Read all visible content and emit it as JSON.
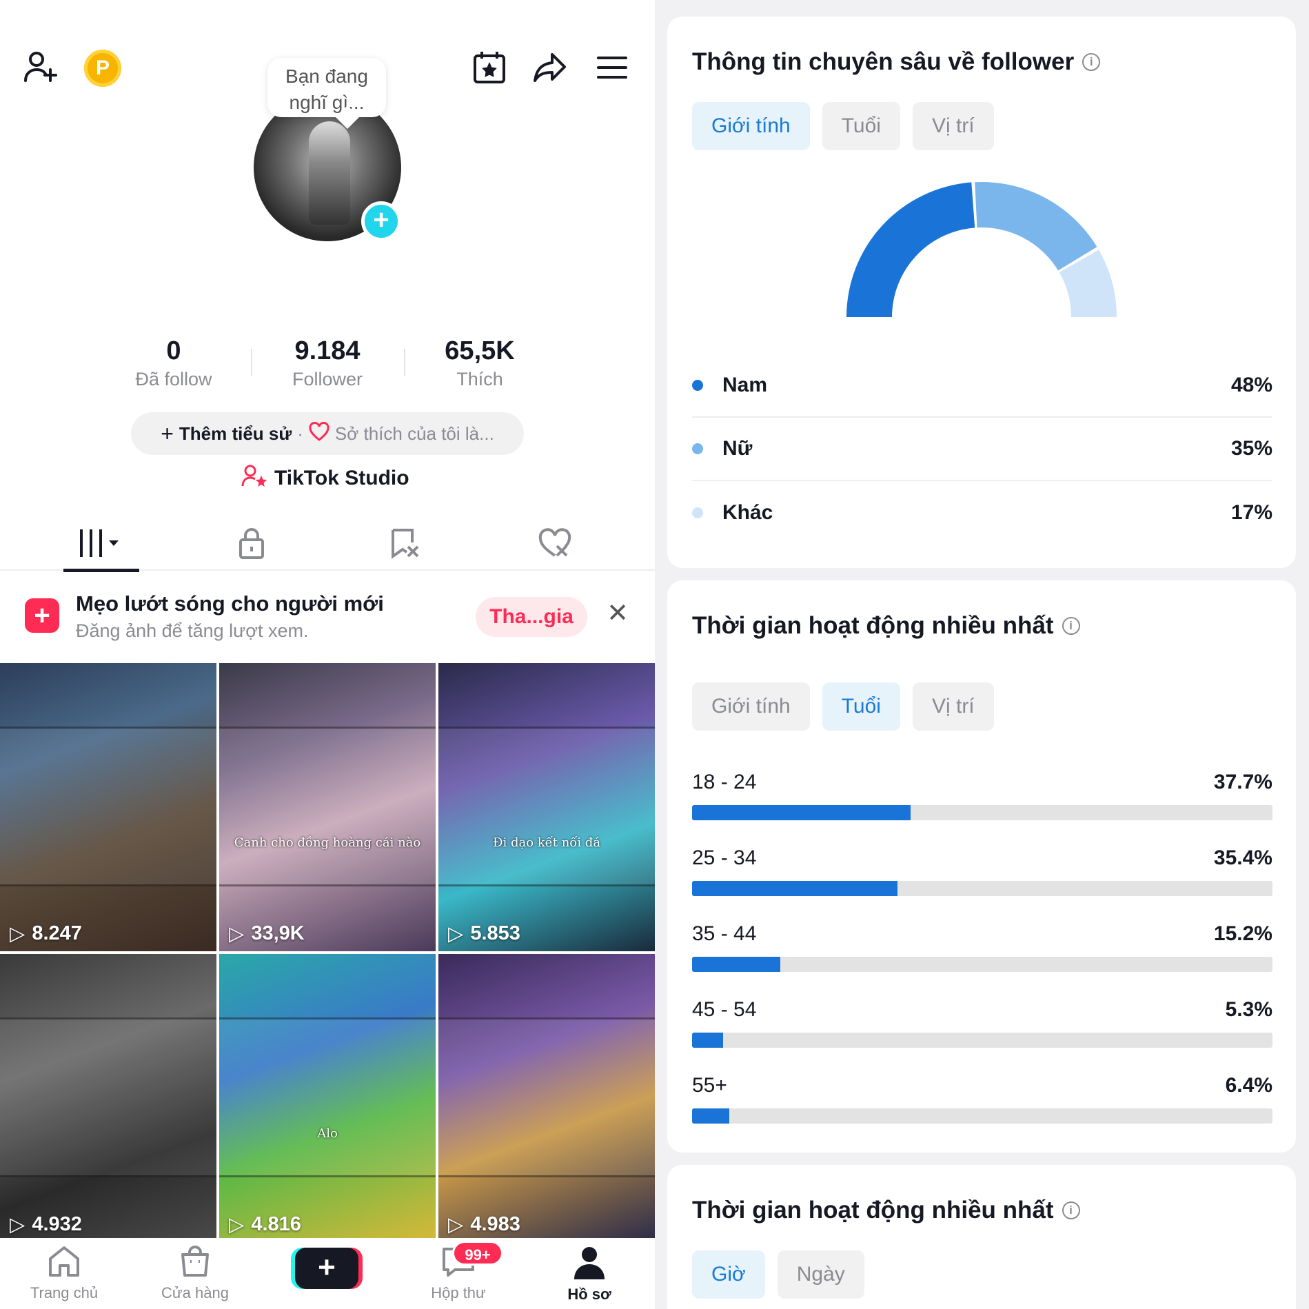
{
  "profile": {
    "bubble_text": "Bạn đang nghĩ gì...",
    "coin_letter": "P",
    "stats": [
      {
        "value": "0",
        "label": "Đã follow"
      },
      {
        "value": "9.184",
        "label": "Follower"
      },
      {
        "value": "65,5K",
        "label": "Thích"
      }
    ],
    "bio_add": "Thêm tiểu sử",
    "bio_separator": "·",
    "bio_hint": "Sở thích của tôi là...",
    "studio_label": "TikTok Studio"
  },
  "tip": {
    "title": "Mẹo lướt sóng cho người mới",
    "subtitle": "Đăng ảnh để tăng lượt xem.",
    "join_label": "Tha...gia"
  },
  "videos": [
    {
      "views": "8.247",
      "caption": ""
    },
    {
      "views": "33,9K",
      "caption": "Canh cho đồng hoàng cái nào"
    },
    {
      "views": "5.853",
      "caption": "Đi dạo kết nối đá"
    },
    {
      "views": "4.932",
      "caption": ""
    },
    {
      "views": "4.816",
      "caption": "Alo"
    },
    {
      "views": "4.983",
      "caption": ""
    }
  ],
  "nav": {
    "home": "Trang chủ",
    "shop": "Cửa hàng",
    "inbox": "Hộp thư",
    "inbox_badge": "99+",
    "profile": "Hồ sơ"
  },
  "gender_card": {
    "title": "Thông tin chuyên sâu về follower",
    "tabs": [
      "Giới tính",
      "Tuổi",
      "Vị trí"
    ],
    "active_tab": 0,
    "items": [
      {
        "name": "Nam",
        "percent": "48%",
        "value": 48,
        "color": "#1a73d6"
      },
      {
        "name": "Nữ",
        "percent": "35%",
        "value": 35,
        "color": "#7ab6ec"
      },
      {
        "name": "Khác",
        "percent": "17%",
        "value": 17,
        "color": "#cfe4f8"
      }
    ]
  },
  "age_card": {
    "title": "Thời gian hoạt động nhiều nhất",
    "tabs": [
      "Giới tính",
      "Tuổi",
      "Vị trí"
    ],
    "active_tab": 1,
    "items": [
      {
        "range": "18 - 24",
        "percent": "37.7%",
        "value": 37.7
      },
      {
        "range": "25 - 34",
        "percent": "35.4%",
        "value": 35.4
      },
      {
        "range": "35 - 44",
        "percent": "15.2%",
        "value": 15.2
      },
      {
        "range": "45 - 54",
        "percent": "5.3%",
        "value": 5.3
      },
      {
        "range": "55+",
        "percent": "6.4%",
        "value": 6.4
      }
    ]
  },
  "activity_card": {
    "title": "Thời gian hoạt động nhiều nhất",
    "tabs": [
      "Giờ",
      "Ngày"
    ],
    "active_tab": 0
  }
}
